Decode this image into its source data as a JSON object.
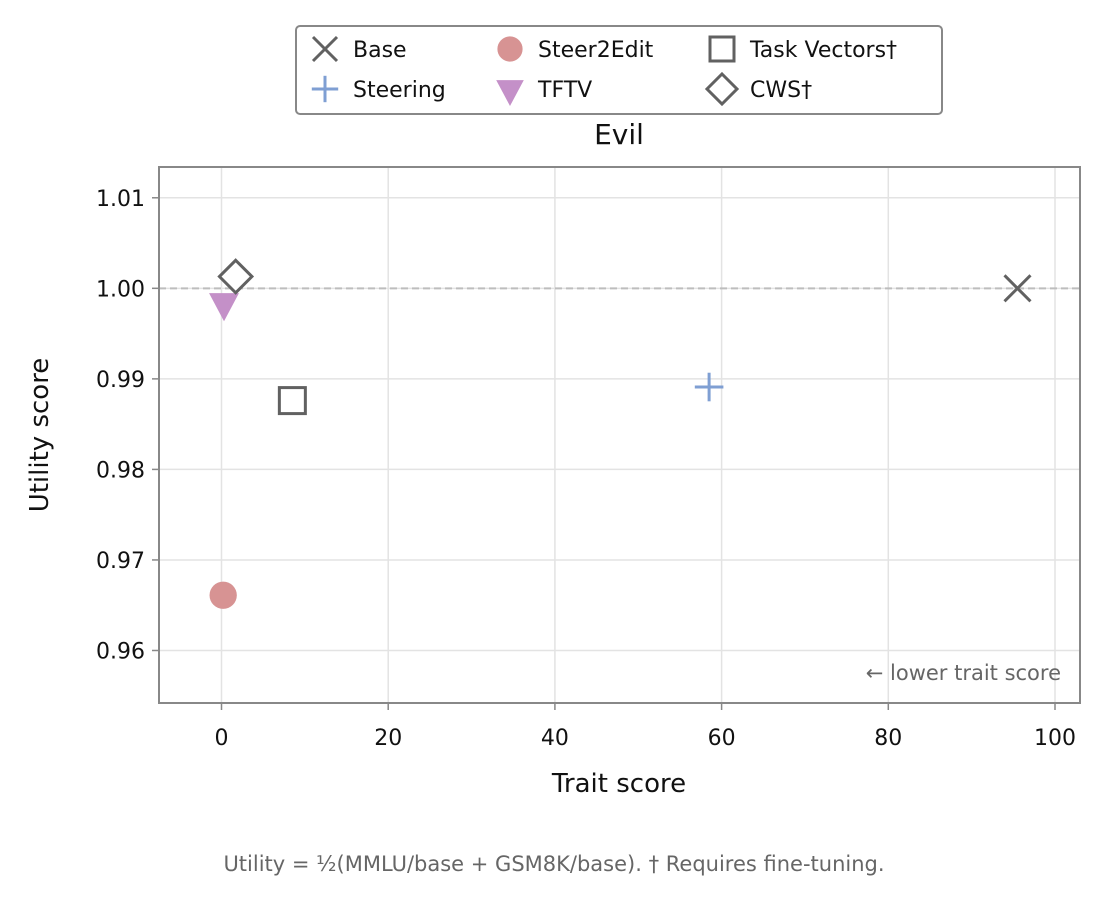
{
  "chart_data": {
    "type": "scatter",
    "title": "Evil",
    "xlabel": "Trait score",
    "ylabel": "Utility score",
    "xlim": [
      -7.5,
      103
    ],
    "ylim": [
      0.9542,
      1.0134
    ],
    "xticks": [
      "0",
      "20",
      "40",
      "60",
      "80",
      "100"
    ],
    "yticks": [
      "0.96",
      "0.97",
      "0.98",
      "0.99",
      "1.00",
      "1.01"
    ],
    "grid": true,
    "reference_line_y": 1.0,
    "legend_position": "top-center",
    "annotation": "← lower trait score",
    "series": [
      {
        "name": "Base",
        "marker": "x",
        "color": "#616161",
        "x": 95.5,
        "y": 1.0
      },
      {
        "name": "Steering",
        "marker": "plus",
        "color": "#7f9fd3",
        "x": 58.5,
        "y": 0.9891
      },
      {
        "name": "Steer2Edit",
        "marker": "circle",
        "color": "#d79393",
        "x": 0.2,
        "y": 0.9661
      },
      {
        "name": "TFTV",
        "marker": "triangle-down",
        "color": "#c490c8",
        "x": 0.3,
        "y": 0.9984
      },
      {
        "name": "Task Vectors†",
        "marker": "square",
        "color": "#616161",
        "x": 8.5,
        "y": 0.9876
      },
      {
        "name": "CWS†",
        "marker": "diamond",
        "color": "#616161",
        "x": 1.7,
        "y": 1.0013
      }
    ],
    "legend_order": [
      "Base",
      "Steering",
      "Steer2Edit",
      "TFTV",
      "Task Vectors†",
      "CWS†"
    ]
  },
  "footnote": "Utility = ½(MMLU/base + GSM8K/base).  † Requires fine-tuning."
}
